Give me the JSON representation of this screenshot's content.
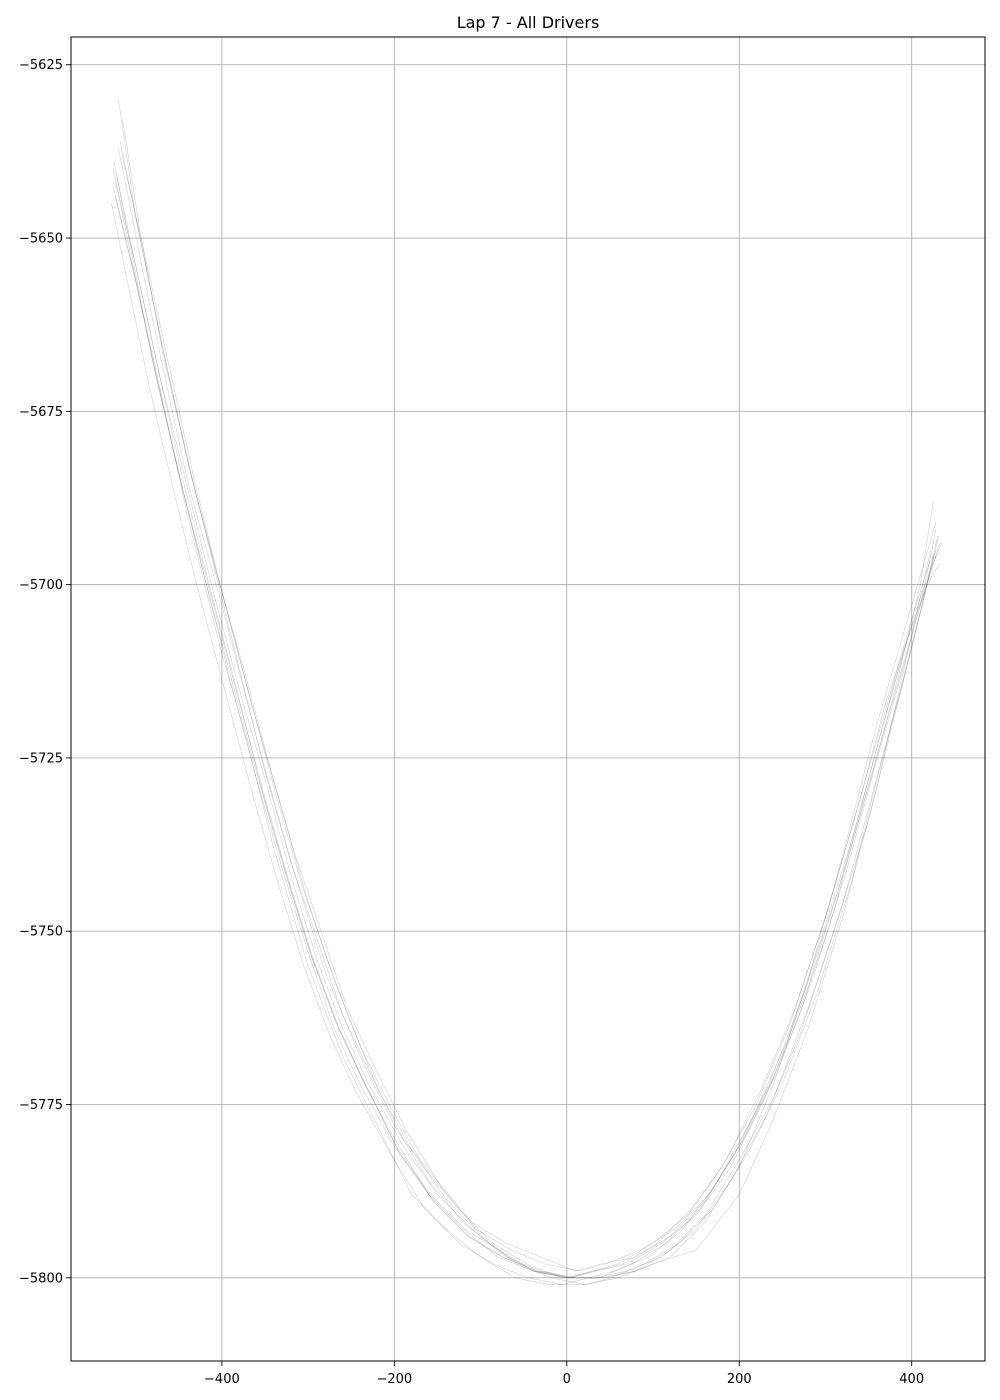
{
  "chart_data": {
    "type": "line",
    "title": "Lap 7 - All Drivers",
    "xlabel": "",
    "ylabel": "",
    "xlim": [
      -575,
      485
    ],
    "ylim": [
      -5812,
      -5621
    ],
    "xticks": [
      -400,
      -200,
      0,
      200,
      400
    ],
    "yticks": [
      -5625,
      -5650,
      -5675,
      -5700,
      -5725,
      -5750,
      -5775,
      -5800
    ],
    "xtick_labels": [
      "−400",
      "−200",
      "0",
      "200",
      "400"
    ],
    "ytick_labels": [
      "−5625",
      "−5650",
      "−5675",
      "−5700",
      "−5725",
      "−5750",
      "−5775",
      "−5800"
    ],
    "grid": true,
    "line_color": "#555555",
    "series": [
      {
        "x": [
          -525,
          -505,
          -480,
          -450,
          -420,
          -390,
          -360,
          -330,
          -300,
          -270,
          -240,
          -200,
          -160,
          -120,
          -80,
          -40,
          0,
          30,
          60,
          100,
          140,
          180,
          220,
          260,
          300,
          340,
          370,
          400,
          420,
          430
        ],
        "y": [
          -5639,
          -5652,
          -5668,
          -5684,
          -5699,
          -5714,
          -5728,
          -5741,
          -5753,
          -5764,
          -5772,
          -5781,
          -5788,
          -5793,
          -5797,
          -5799,
          -5800,
          -5799,
          -5798,
          -5795,
          -5791,
          -5784,
          -5775,
          -5763,
          -5748,
          -5731,
          -5717,
          -5706,
          -5699,
          -5695
        ]
      },
      {
        "x": [
          -520,
          -500,
          -470,
          -440,
          -410,
          -380,
          -350,
          -320,
          -290,
          -260,
          -230,
          -190,
          -150,
          -110,
          -70,
          -30,
          10,
          40,
          80,
          120,
          160,
          200,
          240,
          280,
          320,
          355,
          385,
          410,
          425
        ],
        "y": [
          -5630,
          -5647,
          -5665,
          -5682,
          -5697,
          -5712,
          -5727,
          -5740,
          -5751,
          -5762,
          -5770,
          -5780,
          -5786,
          -5792,
          -5795,
          -5797,
          -5799,
          -5798,
          -5797,
          -5794,
          -5789,
          -5781,
          -5771,
          -5758,
          -5742,
          -5727,
          -5713,
          -5700,
          -5688
        ]
      },
      {
        "x": [
          -528,
          -510,
          -485,
          -455,
          -425,
          -395,
          -365,
          -335,
          -305,
          -275,
          -245,
          -205,
          -165,
          -125,
          -85,
          -45,
          -5,
          25,
          55,
          95,
          135,
          175,
          215,
          255,
          295,
          335,
          365,
          395,
          418,
          432
        ],
        "y": [
          -5645,
          -5656,
          -5671,
          -5687,
          -5702,
          -5716,
          -5730,
          -5743,
          -5755,
          -5765,
          -5773,
          -5782,
          -5790,
          -5795,
          -5798,
          -5800,
          -5801,
          -5800,
          -5799,
          -5797,
          -5793,
          -5786,
          -5777,
          -5766,
          -5751,
          -5735,
          -5721,
          -5708,
          -5700,
          -5697
        ]
      },
      {
        "x": [
          -515,
          -495,
          -468,
          -438,
          -405,
          -375,
          -345,
          -315,
          -285,
          -255,
          -225,
          -185,
          -145,
          -105,
          -65,
          -25,
          15,
          45,
          85,
          125,
          165,
          205,
          245,
          285,
          325,
          358,
          388,
          412,
          428
        ],
        "y": [
          -5633,
          -5649,
          -5667,
          -5683,
          -5699,
          -5712,
          -5726,
          -5739,
          -5750,
          -5761,
          -5769,
          -5779,
          -5787,
          -5793,
          -5796,
          -5798,
          -5799,
          -5798,
          -5796,
          -5793,
          -5788,
          -5780,
          -5770,
          -5757,
          -5741,
          -5726,
          -5713,
          -5702,
          -5692
        ]
      },
      {
        "x": [
          -522,
          -500,
          -472,
          -445,
          -415,
          -385,
          -355,
          -325,
          -295,
          -265,
          -235,
          -195,
          -155,
          -115,
          -75,
          -35,
          5,
          35,
          70,
          110,
          150,
          190,
          230,
          270,
          310,
          345,
          375,
          403,
          422,
          434
        ],
        "y": [
          -5641,
          -5654,
          -5670,
          -5685,
          -5700,
          -5714,
          -5729,
          -5742,
          -5754,
          -5764,
          -5772,
          -5781,
          -5789,
          -5794,
          -5797,
          -5799,
          -5800,
          -5799,
          -5798,
          -5795,
          -5791,
          -5784,
          -5774,
          -5762,
          -5747,
          -5731,
          -5718,
          -5706,
          -5698,
          -5694
        ]
      },
      {
        "x": [
          -525,
          -480,
          -440,
          -400,
          -372,
          -340,
          -300,
          -260,
          -220,
          -180,
          -140,
          -100,
          -60,
          -20,
          20,
          60,
          100,
          150,
          200,
          240,
          280,
          320,
          360,
          395,
          422
        ],
        "y": [
          -5643,
          -5667,
          -5690,
          -5710,
          -5722,
          -5738,
          -5755,
          -5768,
          -5778,
          -5788,
          -5793,
          -5797,
          -5800,
          -5801,
          -5801,
          -5800,
          -5798,
          -5796,
          -5788,
          -5777,
          -5764,
          -5748,
          -5729,
          -5710,
          -5695
        ]
      },
      {
        "x": [
          -518,
          -495,
          -465,
          -432,
          -400,
          -368,
          -338,
          -308,
          -278,
          -248,
          -218,
          -178,
          -138,
          -98,
          -58,
          -18,
          22,
          52,
          90,
          130,
          170,
          210,
          250,
          290,
          330,
          362,
          390,
          414,
          430
        ],
        "y": [
          -5636,
          -5650,
          -5668,
          -5686,
          -5701,
          -5716,
          -5730,
          -5743,
          -5754,
          -5764,
          -5773,
          -5782,
          -5789,
          -5794,
          -5798,
          -5800,
          -5801,
          -5800,
          -5798,
          -5795,
          -5790,
          -5782,
          -5772,
          -5759,
          -5743,
          -5727,
          -5714,
          -5702,
          -5693
        ]
      },
      {
        "x": [
          -526,
          -505,
          -478,
          -448,
          -418,
          -388,
          -358,
          -328,
          -298,
          -268,
          -238,
          -198,
          -158,
          -118,
          -78,
          -38,
          2,
          32,
          65,
          105,
          145,
          185,
          225,
          265,
          305,
          342,
          372,
          400,
          420,
          433
        ],
        "y": [
          -5640,
          -5653,
          -5669,
          -5685,
          -5700,
          -5714,
          -5728,
          -5741,
          -5753,
          -5763,
          -5771,
          -5781,
          -5788,
          -5793,
          -5796,
          -5799,
          -5800,
          -5799,
          -5798,
          -5795,
          -5790,
          -5783,
          -5773,
          -5761,
          -5746,
          -5730,
          -5717,
          -5705,
          -5697,
          -5694
        ]
      },
      {
        "x": [
          -520,
          -480,
          -440,
          -400,
          -360,
          -320,
          -280,
          -240,
          -200,
          -160,
          -120,
          -80,
          -40,
          0,
          40,
          80,
          120,
          160,
          200,
          240,
          280,
          320,
          360,
          400,
          428
        ],
        "y": [
          -5637,
          -5662,
          -5685,
          -5703,
          -5722,
          -5740,
          -5756,
          -5768,
          -5778,
          -5786,
          -5792,
          -5796,
          -5799,
          -5800,
          -5800,
          -5799,
          -5797,
          -5792,
          -5784,
          -5772,
          -5757,
          -5739,
          -5720,
          -5703,
          -5691
        ]
      },
      {
        "x": [
          -523,
          -498,
          -470,
          -440,
          -410,
          -380,
          -350,
          -320,
          -290,
          -260,
          -230,
          -190,
          -150,
          -110,
          -70,
          -30,
          10,
          45,
          80,
          120,
          160,
          200,
          240,
          280,
          320,
          355,
          383,
          408,
          426
        ],
        "y": [
          -5642,
          -5655,
          -5671,
          -5686,
          -5701,
          -5715,
          -5728,
          -5742,
          -5754,
          -5764,
          -5772,
          -5781,
          -5788,
          -5793,
          -5797,
          -5799,
          -5800,
          -5800,
          -5799,
          -5796,
          -5791,
          -5783,
          -5774,
          -5761,
          -5746,
          -5730,
          -5717,
          -5705,
          -5696
        ]
      },
      {
        "x": [
          -516,
          -492,
          -462,
          -430,
          -398,
          -366,
          -334,
          -302,
          -270,
          -238,
          -206,
          -166,
          -126,
          -86,
          -46,
          -6,
          34,
          70,
          110,
          150,
          190,
          230,
          270,
          310,
          350,
          380,
          406,
          425
        ],
        "y": [
          -5638,
          -5651,
          -5668,
          -5686,
          -5702,
          -5717,
          -5731,
          -5745,
          -5757,
          -5767,
          -5775,
          -5784,
          -5790,
          -5795,
          -5798,
          -5800,
          -5800,
          -5799,
          -5797,
          -5793,
          -5786,
          -5777,
          -5765,
          -5750,
          -5734,
          -5719,
          -5706,
          -5696
        ]
      },
      {
        "x": [
          -524,
          -500,
          -474,
          -444,
          -414,
          -384,
          -354,
          -324,
          -294,
          -264,
          -234,
          -194,
          -154,
          -114,
          -74,
          -34,
          6,
          38,
          75,
          115,
          155,
          195,
          235,
          275,
          315,
          350,
          378,
          404,
          424,
          431
        ],
        "y": [
          -5644,
          -5656,
          -5671,
          -5687,
          -5701,
          -5715,
          -5729,
          -5742,
          -5754,
          -5764,
          -5772,
          -5782,
          -5789,
          -5794,
          -5797,
          -5799,
          -5800,
          -5800,
          -5798,
          -5795,
          -5790,
          -5782,
          -5772,
          -5759,
          -5744,
          -5728,
          -5715,
          -5704,
          -5697,
          -5693
        ]
      }
    ]
  }
}
